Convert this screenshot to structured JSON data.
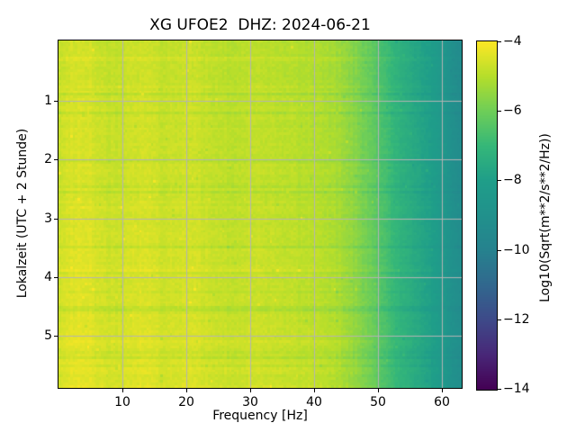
{
  "figure": {
    "title": "XG UFOE2  DHZ: 2024-06-21",
    "background_color": "#ffffff",
    "text_color": "#000000"
  },
  "chart_data": {
    "type": "heatmap",
    "subtype": "spectrogram",
    "title": "XG UFOE2  DHZ: 2024-06-21",
    "station": "XG UFOE2",
    "channel": "DHZ",
    "date": "2024-06-21",
    "xlabel": "Frequency [Hz]",
    "ylabel": "Lokalzeit (UTC + 2 Stunde)",
    "colorbar_label": "Log10(Sqrt(m**2/s**2/Hz))",
    "x_ticks": [
      10,
      20,
      30,
      40,
      50,
      60
    ],
    "x_tick_labels": [
      "10",
      "20",
      "30",
      "40",
      "50",
      "60"
    ],
    "y_ticks": [
      1,
      2,
      3,
      4,
      5
    ],
    "y_tick_labels": [
      "1",
      "2",
      "3",
      "4",
      "5"
    ],
    "colorbar_ticks": [
      -4,
      -6,
      -8,
      -10,
      -12,
      -14
    ],
    "colorbar_tick_labels": [
      "−4",
      "−6",
      "−8",
      "−10",
      "−12",
      "−14"
    ],
    "x_range": [
      0,
      63.1
    ],
    "y_range": [
      -0.03,
      5.89
    ],
    "value_range": [
      -14,
      -4
    ],
    "colormap": "viridis",
    "colormap_stops": [
      "#440154",
      "#482878",
      "#3e4a89",
      "#31688e",
      "#26828e",
      "#21918c",
      "#1f9e89",
      "#35b779",
      "#6ece58",
      "#b5de2b",
      "#fde725"
    ],
    "grid": true,
    "grid_color": "#b4b4b4",
    "frequency_profile_log10": [
      [
        0,
        -4.7
      ],
      [
        1,
        -4.55
      ],
      [
        3,
        -4.45
      ],
      [
        5,
        -4.5
      ],
      [
        7,
        -4.65
      ],
      [
        9,
        -4.75
      ],
      [
        11,
        -4.6
      ],
      [
        13.5,
        -4.5
      ],
      [
        16,
        -4.7
      ],
      [
        19,
        -4.65
      ],
      [
        21,
        -4.6
      ],
      [
        24,
        -4.8
      ],
      [
        27,
        -4.85
      ],
      [
        30,
        -4.75
      ],
      [
        33,
        -4.8
      ],
      [
        36,
        -4.85
      ],
      [
        38,
        -4.95
      ],
      [
        40,
        -4.95
      ],
      [
        43,
        -5.1
      ],
      [
        45,
        -5.35
      ],
      [
        47,
        -5.7
      ],
      [
        49,
        -6.1
      ],
      [
        50,
        -6.35
      ],
      [
        52,
        -6.9
      ],
      [
        54,
        -7.3
      ],
      [
        56,
        -7.6
      ],
      [
        58,
        -7.9
      ],
      [
        60,
        -8.4
      ],
      [
        61.5,
        -9.0
      ],
      [
        63.1,
        -9.3
      ]
    ]
  }
}
